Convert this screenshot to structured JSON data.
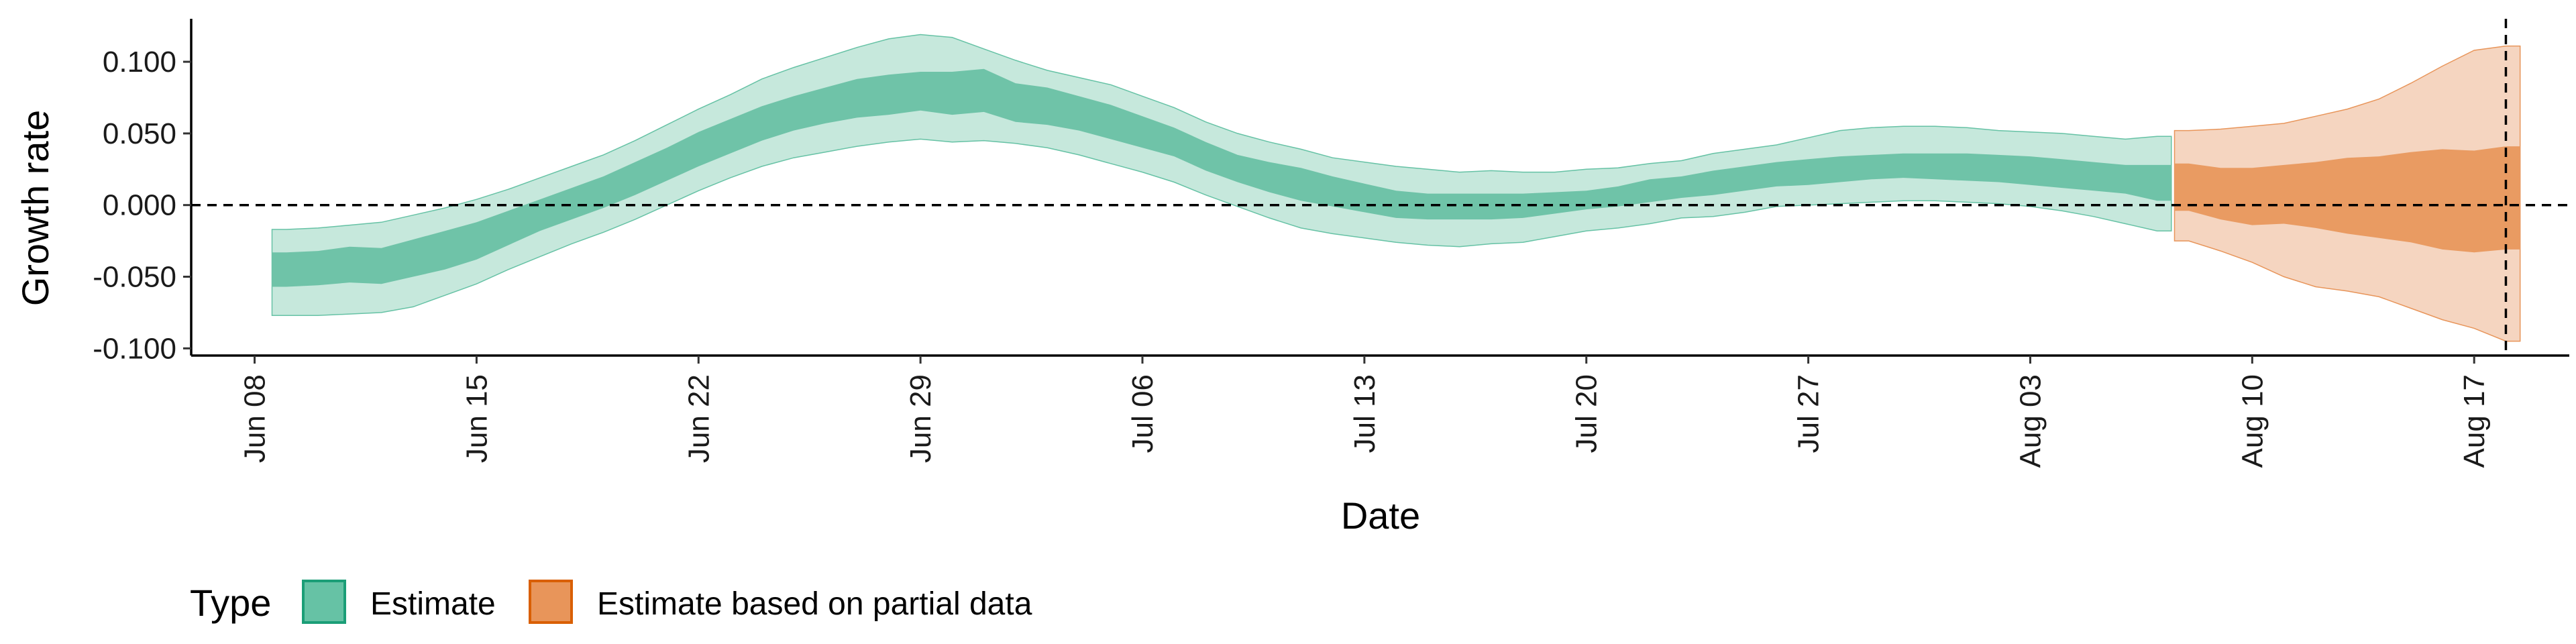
{
  "chart_data": {
    "type": "area",
    "title": "",
    "xlabel": "Date",
    "ylabel": "Growth rate",
    "xlim": [
      "2020-06-06",
      "2020-08-20"
    ],
    "ylim": [
      -0.105,
      0.13
    ],
    "x_ticks": [
      "2020-06-08",
      "2020-06-15",
      "2020-06-22",
      "2020-06-29",
      "2020-07-06",
      "2020-07-13",
      "2020-07-20",
      "2020-07-27",
      "2020-08-03",
      "2020-08-10",
      "2020-08-17"
    ],
    "x_tick_labels": [
      "Jun 08",
      "Jun 15",
      "Jun 22",
      "Jun 29",
      "Jul 06",
      "Jul 13",
      "Jul 20",
      "Jul 27",
      "Aug 03",
      "Aug 10",
      "Aug 17"
    ],
    "y_ticks": [
      0.1,
      0.05,
      0.0,
      -0.05,
      -0.1
    ],
    "y_tick_labels": [
      "0.100",
      "0.050",
      "0.000",
      "-0.050",
      "-0.100"
    ],
    "reference_lines": [
      {
        "axis": "y",
        "value": 0,
        "style": "dashed"
      },
      {
        "axis": "x",
        "value": "2020-08-18",
        "style": "dashed"
      }
    ],
    "grid": false,
    "legend": {
      "title": "Type",
      "position": "bottom-left",
      "entries": [
        {
          "label": "Estimate",
          "color": "#66c2a5",
          "border": "#1b9e77"
        },
        {
          "label": "Estimate based on partial data",
          "color": "#e8955a",
          "border": "#d95f02"
        }
      ]
    },
    "series": [
      {
        "name": "Estimate",
        "colors": {
          "outer": "#c6e8dc",
          "inner": "#6fc3a8",
          "edge": "#66c2a5"
        },
        "points": [
          {
            "x": "2020-06-09",
            "outer": [
              -0.077,
              -0.017
            ],
            "inner": [
              -0.057,
              -0.033
            ]
          },
          {
            "x": "2020-06-10",
            "outer": [
              -0.077,
              -0.016
            ],
            "inner": [
              -0.056,
              -0.032
            ]
          },
          {
            "x": "2020-06-11",
            "outer": [
              -0.076,
              -0.014
            ],
            "inner": [
              -0.054,
              -0.029
            ]
          },
          {
            "x": "2020-06-12",
            "outer": [
              -0.075,
              -0.012
            ],
            "inner": [
              -0.055,
              -0.03
            ]
          },
          {
            "x": "2020-06-13",
            "outer": [
              -0.071,
              -0.007
            ],
            "inner": [
              -0.05,
              -0.024
            ]
          },
          {
            "x": "2020-06-14",
            "outer": [
              -0.063,
              -0.002
            ],
            "inner": [
              -0.045,
              -0.018
            ]
          },
          {
            "x": "2020-06-15",
            "outer": [
              -0.055,
              0.004
            ],
            "inner": [
              -0.038,
              -0.012
            ]
          },
          {
            "x": "2020-06-16",
            "outer": [
              -0.045,
              0.011
            ],
            "inner": [
              -0.028,
              -0.004
            ]
          },
          {
            "x": "2020-06-17",
            "outer": [
              -0.036,
              0.019
            ],
            "inner": [
              -0.018,
              0.004
            ]
          },
          {
            "x": "2020-06-18",
            "outer": [
              -0.027,
              0.027
            ],
            "inner": [
              -0.01,
              0.012
            ]
          },
          {
            "x": "2020-06-19",
            "outer": [
              -0.019,
              0.035
            ],
            "inner": [
              -0.002,
              0.02
            ]
          },
          {
            "x": "2020-06-20",
            "outer": [
              -0.01,
              0.045
            ],
            "inner": [
              0.007,
              0.03
            ]
          },
          {
            "x": "2020-06-21",
            "outer": [
              0.0,
              0.056
            ],
            "inner": [
              0.017,
              0.04
            ]
          },
          {
            "x": "2020-06-22",
            "outer": [
              0.01,
              0.067
            ],
            "inner": [
              0.027,
              0.051
            ]
          },
          {
            "x": "2020-06-23",
            "outer": [
              0.019,
              0.077
            ],
            "inner": [
              0.036,
              0.06
            ]
          },
          {
            "x": "2020-06-24",
            "outer": [
              0.027,
              0.088
            ],
            "inner": [
              0.045,
              0.069
            ]
          },
          {
            "x": "2020-06-25",
            "outer": [
              0.033,
              0.096
            ],
            "inner": [
              0.052,
              0.076
            ]
          },
          {
            "x": "2020-06-26",
            "outer": [
              0.037,
              0.103
            ],
            "inner": [
              0.057,
              0.082
            ]
          },
          {
            "x": "2020-06-27",
            "outer": [
              0.041,
              0.11
            ],
            "inner": [
              0.061,
              0.088
            ]
          },
          {
            "x": "2020-06-28",
            "outer": [
              0.044,
              0.116
            ],
            "inner": [
              0.063,
              0.091
            ]
          },
          {
            "x": "2020-06-29",
            "outer": [
              0.046,
              0.119
            ],
            "inner": [
              0.066,
              0.093
            ]
          },
          {
            "x": "2020-06-30",
            "outer": [
              0.044,
              0.117
            ],
            "inner": [
              0.063,
              0.093
            ]
          },
          {
            "x": "2020-07-01",
            "outer": [
              0.045,
              0.109
            ],
            "inner": [
              0.065,
              0.095
            ]
          },
          {
            "x": "2020-07-02",
            "outer": [
              0.043,
              0.101
            ],
            "inner": [
              0.058,
              0.085
            ]
          },
          {
            "x": "2020-07-03",
            "outer": [
              0.04,
              0.094
            ],
            "inner": [
              0.056,
              0.082
            ]
          },
          {
            "x": "2020-07-04",
            "outer": [
              0.035,
              0.089
            ],
            "inner": [
              0.052,
              0.076
            ]
          },
          {
            "x": "2020-07-05",
            "outer": [
              0.029,
              0.084
            ],
            "inner": [
              0.046,
              0.07
            ]
          },
          {
            "x": "2020-07-06",
            "outer": [
              0.023,
              0.076
            ],
            "inner": [
              0.04,
              0.062
            ]
          },
          {
            "x": "2020-07-07",
            "outer": [
              0.016,
              0.068
            ],
            "inner": [
              0.034,
              0.054
            ]
          },
          {
            "x": "2020-07-08",
            "outer": [
              0.007,
              0.058
            ],
            "inner": [
              0.024,
              0.044
            ]
          },
          {
            "x": "2020-07-09",
            "outer": [
              -0.001,
              0.05
            ],
            "inner": [
              0.016,
              0.035
            ]
          },
          {
            "x": "2020-07-10",
            "outer": [
              -0.009,
              0.044
            ],
            "inner": [
              0.009,
              0.03
            ]
          },
          {
            "x": "2020-07-11",
            "outer": [
              -0.016,
              0.039
            ],
            "inner": [
              0.003,
              0.026
            ]
          },
          {
            "x": "2020-07-12",
            "outer": [
              -0.02,
              0.033
            ],
            "inner": [
              -0.001,
              0.02
            ]
          },
          {
            "x": "2020-07-13",
            "outer": [
              -0.023,
              0.03
            ],
            "inner": [
              -0.005,
              0.015
            ]
          },
          {
            "x": "2020-07-14",
            "outer": [
              -0.026,
              0.027
            ],
            "inner": [
              -0.009,
              0.01
            ]
          },
          {
            "x": "2020-07-15",
            "outer": [
              -0.028,
              0.025
            ],
            "inner": [
              -0.01,
              0.008
            ]
          },
          {
            "x": "2020-07-16",
            "outer": [
              -0.029,
              0.023
            ],
            "inner": [
              -0.01,
              0.008
            ]
          },
          {
            "x": "2020-07-17",
            "outer": [
              -0.027,
              0.024
            ],
            "inner": [
              -0.01,
              0.008
            ]
          },
          {
            "x": "2020-07-18",
            "outer": [
              -0.026,
              0.023
            ],
            "inner": [
              -0.009,
              0.008
            ]
          },
          {
            "x": "2020-07-19",
            "outer": [
              -0.022,
              0.023
            ],
            "inner": [
              -0.006,
              0.009
            ]
          },
          {
            "x": "2020-07-20",
            "outer": [
              -0.018,
              0.025
            ],
            "inner": [
              -0.003,
              0.01
            ]
          },
          {
            "x": "2020-07-21",
            "outer": [
              -0.016,
              0.026
            ],
            "inner": [
              -0.001,
              0.013
            ]
          },
          {
            "x": "2020-07-22",
            "outer": [
              -0.013,
              0.029
            ],
            "inner": [
              0.002,
              0.018
            ]
          },
          {
            "x": "2020-07-23",
            "outer": [
              -0.009,
              0.031
            ],
            "inner": [
              0.005,
              0.02
            ]
          },
          {
            "x": "2020-07-24",
            "outer": [
              -0.008,
              0.036
            ],
            "inner": [
              0.007,
              0.024
            ]
          },
          {
            "x": "2020-07-25",
            "outer": [
              -0.005,
              0.039
            ],
            "inner": [
              0.01,
              0.027
            ]
          },
          {
            "x": "2020-07-26",
            "outer": [
              -0.001,
              0.042
            ],
            "inner": [
              0.013,
              0.03
            ]
          },
          {
            "x": "2020-07-27",
            "outer": [
              0.0,
              0.047
            ],
            "inner": [
              0.014,
              0.032
            ]
          },
          {
            "x": "2020-07-28",
            "outer": [
              0.001,
              0.052
            ],
            "inner": [
              0.016,
              0.034
            ]
          },
          {
            "x": "2020-07-29",
            "outer": [
              0.002,
              0.054
            ],
            "inner": [
              0.018,
              0.035
            ]
          },
          {
            "x": "2020-07-30",
            "outer": [
              0.003,
              0.055
            ],
            "inner": [
              0.019,
              0.036
            ]
          },
          {
            "x": "2020-07-31",
            "outer": [
              0.003,
              0.055
            ],
            "inner": [
              0.018,
              0.036
            ]
          },
          {
            "x": "2020-08-01",
            "outer": [
              0.002,
              0.054
            ],
            "inner": [
              0.017,
              0.036
            ]
          },
          {
            "x": "2020-08-02",
            "outer": [
              0.001,
              0.052
            ],
            "inner": [
              0.016,
              0.035
            ]
          },
          {
            "x": "2020-08-03",
            "outer": [
              -0.001,
              0.051
            ],
            "inner": [
              0.014,
              0.034
            ]
          },
          {
            "x": "2020-08-04",
            "outer": [
              -0.004,
              0.05
            ],
            "inner": [
              0.012,
              0.032
            ]
          },
          {
            "x": "2020-08-05",
            "outer": [
              -0.008,
              0.048
            ],
            "inner": [
              0.01,
              0.03
            ]
          },
          {
            "x": "2020-08-06",
            "outer": [
              -0.013,
              0.046
            ],
            "inner": [
              0.008,
              0.028
            ]
          },
          {
            "x": "2020-08-07",
            "outer": [
              -0.018,
              0.048
            ],
            "inner": [
              0.003,
              0.028
            ]
          }
        ]
      },
      {
        "name": "Estimate based on partial data",
        "colors": {
          "outer": "#f5d5c0",
          "inner": "#e99b62",
          "edge": "#e8955a"
        },
        "points": [
          {
            "x": "2020-08-08",
            "outer": [
              -0.025,
              0.052
            ],
            "inner": [
              -0.004,
              0.029
            ]
          },
          {
            "x": "2020-08-09",
            "outer": [
              -0.032,
              0.053
            ],
            "inner": [
              -0.01,
              0.026
            ]
          },
          {
            "x": "2020-08-10",
            "outer": [
              -0.04,
              0.055
            ],
            "inner": [
              -0.014,
              0.026
            ]
          },
          {
            "x": "2020-08-11",
            "outer": [
              -0.05,
              0.057
            ],
            "inner": [
              -0.013,
              0.028
            ]
          },
          {
            "x": "2020-08-12",
            "outer": [
              -0.057,
              0.062
            ],
            "inner": [
              -0.016,
              0.03
            ]
          },
          {
            "x": "2020-08-13",
            "outer": [
              -0.06,
              0.067
            ],
            "inner": [
              -0.02,
              0.033
            ]
          },
          {
            "x": "2020-08-14",
            "outer": [
              -0.064,
              0.074
            ],
            "inner": [
              -0.023,
              0.034
            ]
          },
          {
            "x": "2020-08-15",
            "outer": [
              -0.072,
              0.085
            ],
            "inner": [
              -0.026,
              0.037
            ]
          },
          {
            "x": "2020-08-16",
            "outer": [
              -0.08,
              0.097
            ],
            "inner": [
              -0.031,
              0.039
            ]
          },
          {
            "x": "2020-08-17",
            "outer": [
              -0.086,
              0.108
            ],
            "inner": [
              -0.033,
              0.038
            ]
          },
          {
            "x": "2020-08-18",
            "outer": [
              -0.095,
              0.111
            ],
            "inner": [
              -0.031,
              0.041
            ]
          }
        ]
      }
    ]
  }
}
